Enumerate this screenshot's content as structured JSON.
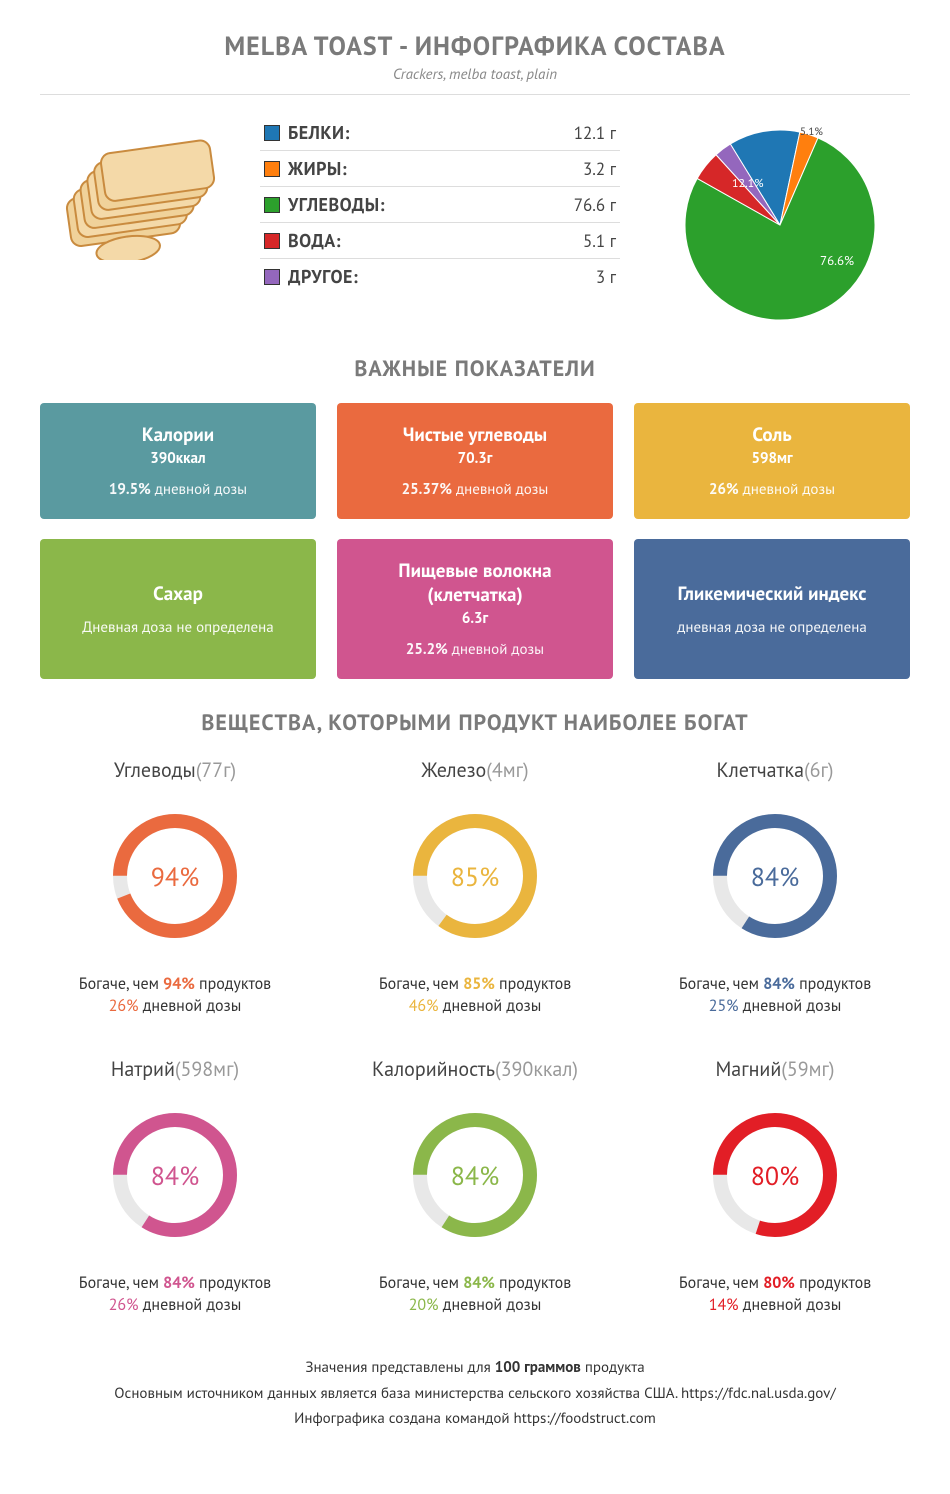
{
  "header": {
    "title_prefix": "MELBA TOAST",
    "title_suffix": "ИНФОГРАФИКА СОСТАВА",
    "subtitle": "Crackers, melba toast, plain"
  },
  "colors": {
    "protein": "#1f77b4",
    "fat": "#ff7f0e",
    "carb": "#2ca02c",
    "water": "#d62728",
    "other": "#9467bd",
    "text_gray": "#7a7a7a",
    "toast_light": "#f4d9a8",
    "toast_dark": "#c98b3f"
  },
  "macros": [
    {
      "key": "protein",
      "label": "БЕЛКИ:",
      "value": "12.1 г",
      "pct": 12.1,
      "color": "#1f77b4"
    },
    {
      "key": "fat",
      "label": "ЖИРЫ:",
      "value": "3.2 г",
      "pct": 3.2,
      "color": "#ff7f0e"
    },
    {
      "key": "carb",
      "label": "УГЛЕВОДЫ:",
      "value": "76.6 г",
      "pct": 76.6,
      "color": "#2ca02c"
    },
    {
      "key": "water",
      "label": "ВОДА:",
      "value": "5.1 г",
      "pct": 5.1,
      "color": "#d62728"
    },
    {
      "key": "other",
      "label": "ДРУГОЕ:",
      "value": "3 г",
      "pct": 3.0,
      "color": "#9467bd"
    }
  ],
  "pie": {
    "labels": [
      {
        "text": "12.1%",
        "color": "#ffffff",
        "fontsize": 10
      },
      {
        "text": "5.1%",
        "color": "#444444",
        "fontsize": 10
      },
      {
        "text": "76.6%",
        "color": "#ffffff",
        "fontsize": 11
      }
    ]
  },
  "section_indicators": "ВАЖНЫЕ ПОКАЗАТЕЛИ",
  "cards": [
    {
      "title": "Калории",
      "value": "390ккал",
      "pct": "19.5%",
      "dose": "дневной дозы",
      "bg": "#5a9aa0"
    },
    {
      "title": "Чистые углеводы",
      "value": "70.3г",
      "pct": "25.37%",
      "dose": "дневной дозы",
      "bg": "#ea6a3f"
    },
    {
      "title": "Соль",
      "value": "598мг",
      "pct": "26%",
      "dose": "дневной дозы",
      "bg": "#eab53e"
    },
    {
      "title": "Сахар",
      "value": "",
      "pct": "",
      "dose": "Дневная доза не определена",
      "bg": "#8bb74a"
    },
    {
      "title": "Пищевые волокна (клетчатка)",
      "value": "6.3г",
      "pct": "25.2%",
      "dose": "дневной дозы",
      "bg": "#d0558f"
    },
    {
      "title": "Гликемический индекс",
      "value": "",
      "pct": "",
      "dose": "дневная доза не определена",
      "bg": "#4a6b9b"
    }
  ],
  "section_rich": "ВЕЩЕСТВА, КОТОРЫМИ ПРОДУКТ НАИБОЛЕЕ БОГАТ",
  "rings": [
    {
      "name": "Углеводы",
      "amount": "(77г)",
      "pct": 94,
      "color": "#ea6a3f",
      "rich_pct": "94%",
      "dose_pct": "26%"
    },
    {
      "name": "Железо",
      "amount": "(4мг)",
      "pct": 85,
      "color": "#eab53e",
      "rich_pct": "85%",
      "dose_pct": "46%"
    },
    {
      "name": "Клетчатка",
      "amount": "(6г)",
      "pct": 84,
      "color": "#4a6b9b",
      "rich_pct": "84%",
      "dose_pct": "25%"
    },
    {
      "name": "Натрий",
      "amount": "(598мг)",
      "pct": 84,
      "color": "#d0558f",
      "rich_pct": "84%",
      "dose_pct": "26%"
    },
    {
      "name": "Калорийность",
      "amount": "(390ккал)",
      "pct": 84,
      "color": "#8bb74a",
      "rich_pct": "84%",
      "dose_pct": "20%"
    },
    {
      "name": "Магний",
      "amount": "(59мг)",
      "pct": 80,
      "color": "#e21e26",
      "rich_pct": "80%",
      "dose_pct": "14%"
    }
  ],
  "ring_strings": {
    "richer_prefix": "Богаче, чем ",
    "richer_suffix": " продуктов",
    "dose_suffix": " дневной дозы"
  },
  "footer": {
    "line1_pre": "Значения представлены для ",
    "line1_bold": "100 граммов",
    "line1_post": " продукта",
    "line2": "Основным источником данных является база министерства сельского хозяйства США. https://fdc.nal.usda.gov/",
    "line3": "Инфографика создана командой https://foodstruct.com"
  }
}
